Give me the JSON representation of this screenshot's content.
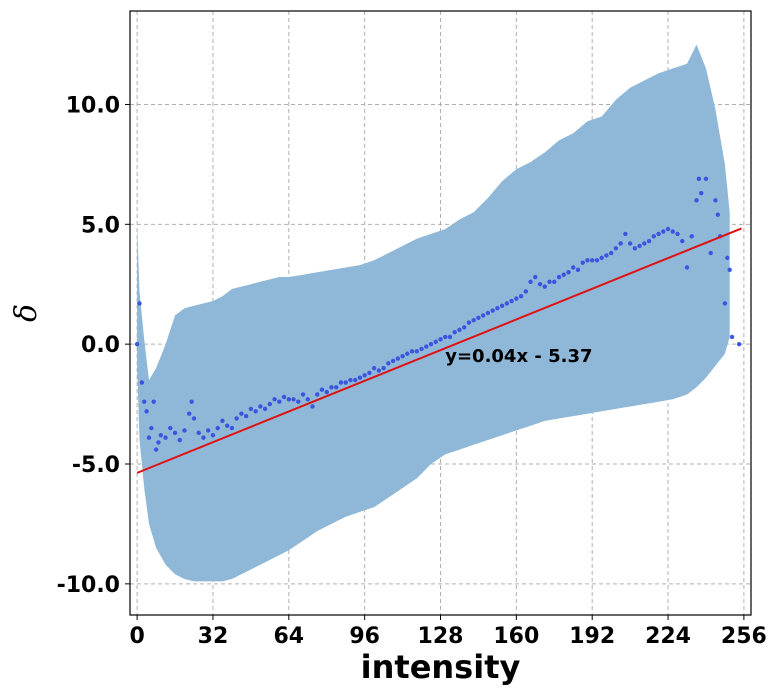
{
  "chart_data": {
    "type": "scatter",
    "xlabel": "intensity",
    "ylabel": "δ",
    "xlim": [
      -3,
      259
    ],
    "ylim": [
      -11.3,
      13.9
    ],
    "xticks": [
      0,
      32,
      64,
      96,
      128,
      160,
      192,
      224,
      256
    ],
    "xtick_labels": [
      "0",
      "32",
      "64",
      "96",
      "128",
      "160",
      "192",
      "224",
      "256"
    ],
    "yticks": [
      -10,
      -5,
      0,
      5,
      10
    ],
    "ytick_labels": [
      "-10.0",
      "-5.0",
      "0.0",
      "5.0",
      "10.0"
    ],
    "grid": true,
    "colors": {
      "band": "#8fb8d8",
      "points": "#3a55e0",
      "fit": "#e01010"
    },
    "fit_line": {
      "slope": 0.04,
      "intercept": -5.37,
      "x_range": [
        0,
        255
      ],
      "label": "y=0.04x - 5.37",
      "label_anchor": [
        130,
        -0.75
      ]
    },
    "band": {
      "x": [
        0,
        1,
        3,
        5,
        8,
        12,
        16,
        20,
        24,
        28,
        32,
        36,
        40,
        44,
        48,
        52,
        56,
        60,
        64,
        70,
        76,
        82,
        88,
        94,
        100,
        106,
        112,
        118,
        124,
        130,
        136,
        142,
        148,
        154,
        160,
        166,
        172,
        178,
        184,
        190,
        196,
        202,
        208,
        214,
        220,
        226,
        232,
        236,
        240,
        244,
        248,
        250
      ],
      "upper": [
        5.0,
        2.2,
        0.2,
        -1.5,
        -1.0,
        0.0,
        1.2,
        1.5,
        1.6,
        1.7,
        1.8,
        2.0,
        2.3,
        2.4,
        2.5,
        2.6,
        2.7,
        2.8,
        2.8,
        2.9,
        3.0,
        3.1,
        3.2,
        3.3,
        3.5,
        3.8,
        4.1,
        4.4,
        4.6,
        4.8,
        5.2,
        5.5,
        6.1,
        6.8,
        7.3,
        7.6,
        8.0,
        8.5,
        8.8,
        9.3,
        9.5,
        10.2,
        10.7,
        11.0,
        11.3,
        11.5,
        11.7,
        12.5,
        11.5,
        9.8,
        7.5,
        5.5
      ],
      "lower": [
        -1.0,
        -4.0,
        -6.0,
        -7.5,
        -8.5,
        -9.2,
        -9.6,
        -9.8,
        -9.9,
        -9.9,
        -9.9,
        -9.9,
        -9.8,
        -9.6,
        -9.4,
        -9.2,
        -9.0,
        -8.8,
        -8.6,
        -8.2,
        -7.8,
        -7.5,
        -7.2,
        -7.0,
        -6.8,
        -6.4,
        -6.0,
        -5.6,
        -5.0,
        -4.6,
        -4.4,
        -4.2,
        -4.0,
        -3.8,
        -3.6,
        -3.4,
        -3.2,
        -3.1,
        -3.0,
        -2.9,
        -2.8,
        -2.7,
        -2.6,
        -2.5,
        -2.4,
        -2.3,
        -2.1,
        -1.8,
        -1.4,
        -0.9,
        -0.4,
        0.3
      ]
    },
    "points": [
      [
        0,
        0.0
      ],
      [
        1,
        1.7
      ],
      [
        2,
        -1.6
      ],
      [
        3,
        -2.4
      ],
      [
        4,
        -2.8
      ],
      [
        5,
        -3.9
      ],
      [
        6,
        -3.5
      ],
      [
        7,
        -2.4
      ],
      [
        8,
        -4.4
      ],
      [
        9,
        -4.1
      ],
      [
        10,
        -3.8
      ],
      [
        12,
        -3.9
      ],
      [
        14,
        -3.5
      ],
      [
        16,
        -3.7
      ],
      [
        18,
        -4.0
      ],
      [
        20,
        -3.6
      ],
      [
        22,
        -2.9
      ],
      [
        23,
        -2.4
      ],
      [
        24,
        -3.1
      ],
      [
        26,
        -3.7
      ],
      [
        28,
        -3.9
      ],
      [
        30,
        -3.6
      ],
      [
        32,
        -3.8
      ],
      [
        34,
        -3.5
      ],
      [
        36,
        -3.2
      ],
      [
        38,
        -3.4
      ],
      [
        40,
        -3.5
      ],
      [
        42,
        -3.1
      ],
      [
        44,
        -2.9
      ],
      [
        46,
        -3.0
      ],
      [
        48,
        -2.7
      ],
      [
        50,
        -2.8
      ],
      [
        52,
        -2.6
      ],
      [
        54,
        -2.7
      ],
      [
        56,
        -2.5
      ],
      [
        58,
        -2.3
      ],
      [
        60,
        -2.4
      ],
      [
        62,
        -2.2
      ],
      [
        64,
        -2.3
      ],
      [
        66,
        -2.3
      ],
      [
        68,
        -2.4
      ],
      [
        70,
        -2.1
      ],
      [
        72,
        -2.3
      ],
      [
        74,
        -2.6
      ],
      [
        76,
        -2.1
      ],
      [
        78,
        -1.9
      ],
      [
        80,
        -2.0
      ],
      [
        82,
        -1.8
      ],
      [
        84,
        -1.8
      ],
      [
        86,
        -1.6
      ],
      [
        88,
        -1.6
      ],
      [
        90,
        -1.5
      ],
      [
        92,
        -1.5
      ],
      [
        94,
        -1.4
      ],
      [
        96,
        -1.3
      ],
      [
        98,
        -1.2
      ],
      [
        100,
        -1.0
      ],
      [
        102,
        -1.1
      ],
      [
        104,
        -1.0
      ],
      [
        106,
        -0.8
      ],
      [
        108,
        -0.7
      ],
      [
        110,
        -0.6
      ],
      [
        112,
        -0.5
      ],
      [
        114,
        -0.4
      ],
      [
        116,
        -0.3
      ],
      [
        118,
        -0.3
      ],
      [
        120,
        -0.2
      ],
      [
        122,
        -0.1
      ],
      [
        124,
        0.0
      ],
      [
        126,
        0.1
      ],
      [
        128,
        0.2
      ],
      [
        130,
        0.3
      ],
      [
        132,
        0.3
      ],
      [
        134,
        0.5
      ],
      [
        136,
        0.6
      ],
      [
        138,
        0.7
      ],
      [
        140,
        0.9
      ],
      [
        142,
        1.0
      ],
      [
        144,
        1.1
      ],
      [
        146,
        1.2
      ],
      [
        148,
        1.3
      ],
      [
        150,
        1.4
      ],
      [
        152,
        1.5
      ],
      [
        154,
        1.6
      ],
      [
        156,
        1.7
      ],
      [
        158,
        1.8
      ],
      [
        160,
        1.9
      ],
      [
        162,
        2.0
      ],
      [
        164,
        2.2
      ],
      [
        166,
        2.6
      ],
      [
        168,
        2.8
      ],
      [
        170,
        2.5
      ],
      [
        172,
        2.4
      ],
      [
        174,
        2.6
      ],
      [
        176,
        2.6
      ],
      [
        178,
        2.8
      ],
      [
        180,
        2.9
      ],
      [
        182,
        3.0
      ],
      [
        184,
        3.2
      ],
      [
        186,
        3.1
      ],
      [
        188,
        3.4
      ],
      [
        190,
        3.5
      ],
      [
        192,
        3.5
      ],
      [
        194,
        3.5
      ],
      [
        196,
        3.6
      ],
      [
        198,
        3.7
      ],
      [
        200,
        3.8
      ],
      [
        202,
        4.0
      ],
      [
        204,
        4.2
      ],
      [
        206,
        4.6
      ],
      [
        208,
        4.2
      ],
      [
        210,
        4.0
      ],
      [
        212,
        4.1
      ],
      [
        214,
        4.2
      ],
      [
        216,
        4.3
      ],
      [
        218,
        4.5
      ],
      [
        220,
        4.6
      ],
      [
        222,
        4.7
      ],
      [
        224,
        4.8
      ],
      [
        226,
        4.7
      ],
      [
        228,
        4.6
      ],
      [
        230,
        4.3
      ],
      [
        232,
        3.2
      ],
      [
        234,
        4.5
      ],
      [
        236,
        6.0
      ],
      [
        237,
        6.9
      ],
      [
        238,
        6.3
      ],
      [
        240,
        6.9
      ],
      [
        242,
        3.8
      ],
      [
        244,
        6.0
      ],
      [
        245,
        5.4
      ],
      [
        246,
        4.5
      ],
      [
        248,
        1.7
      ],
      [
        249,
        3.6
      ],
      [
        250,
        3.1
      ],
      [
        251,
        0.3
      ],
      [
        254,
        0.0
      ]
    ]
  }
}
